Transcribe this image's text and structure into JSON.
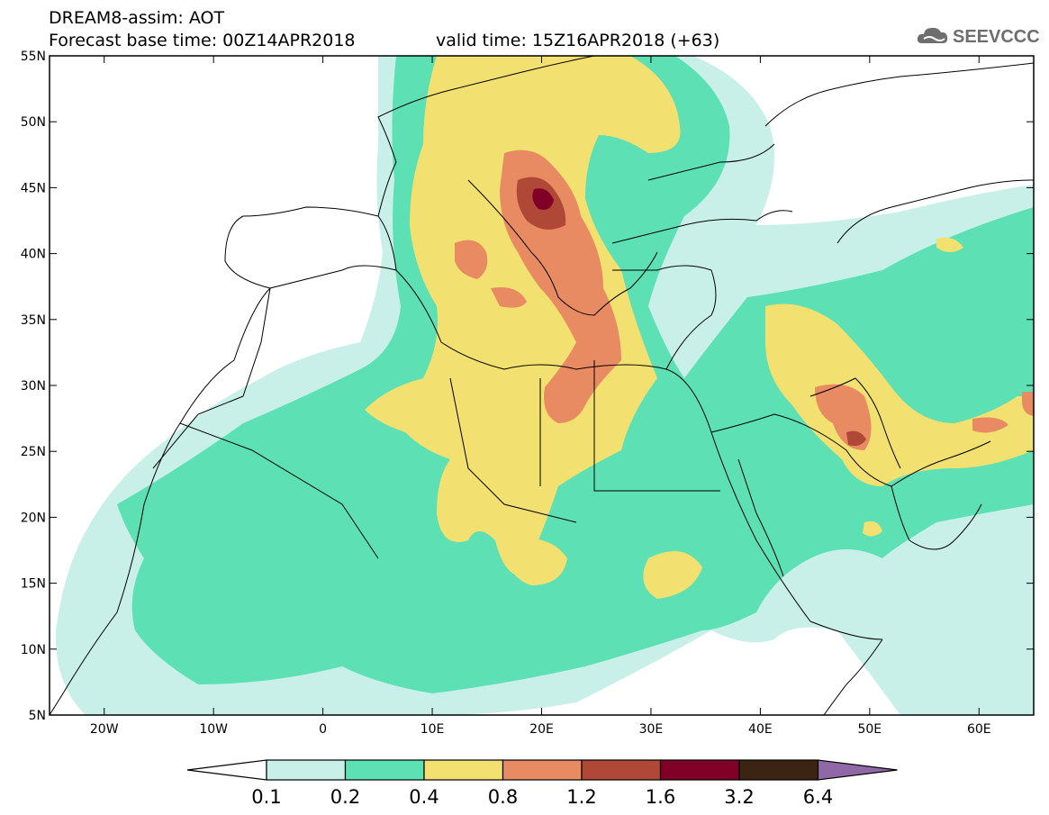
{
  "header": {
    "title": "DREAM8-assim: AOT",
    "base_time": "Forecast base time: 00Z14APR2018",
    "valid_time": "valid time: 15Z16APR2018 (+63)",
    "logo_text": "SEEVCCC"
  },
  "map": {
    "lon_range": [
      -25,
      65
    ],
    "lat_range": [
      5,
      55
    ],
    "lon_ticks": [
      {
        "lon": -20,
        "label": "20W"
      },
      {
        "lon": -10,
        "label": "10W"
      },
      {
        "lon": 0,
        "label": "0"
      },
      {
        "lon": 10,
        "label": "10E"
      },
      {
        "lon": 20,
        "label": "20E"
      },
      {
        "lon": 30,
        "label": "30E"
      },
      {
        "lon": 40,
        "label": "40E"
      },
      {
        "lon": 50,
        "label": "50E"
      },
      {
        "lon": 60,
        "label": "60E"
      }
    ],
    "lat_ticks": [
      {
        "lat": 55,
        "label": "55N"
      },
      {
        "lat": 50,
        "label": "50N"
      },
      {
        "lat": 45,
        "label": "45N"
      },
      {
        "lat": 40,
        "label": "40N"
      },
      {
        "lat": 35,
        "label": "35N"
      },
      {
        "lat": 30,
        "label": "30N"
      },
      {
        "lat": 25,
        "label": "25N"
      },
      {
        "lat": 20,
        "label": "20N"
      },
      {
        "lat": 15,
        "label": "15N"
      },
      {
        "lat": 10,
        "label": "10N"
      },
      {
        "lat": 5,
        "label": "5N"
      }
    ]
  },
  "colorbar": {
    "levels": [
      "0.1",
      "0.2",
      "0.4",
      "0.8",
      "1.2",
      "1.6",
      "3.2",
      "6.4"
    ],
    "colors": [
      "#ffffff",
      "#c8f0e8",
      "#5ce0b4",
      "#f2e070",
      "#e88a62",
      "#b04838",
      "#800028",
      "#3c2414",
      "#9068a8"
    ]
  },
  "colors": {
    "c01": "#c8f0e8",
    "c02": "#5ce0b4",
    "c04": "#f2e070",
    "c08": "#e88a62",
    "c12": "#b04838",
    "c16": "#800028",
    "coast": "#000000"
  }
}
